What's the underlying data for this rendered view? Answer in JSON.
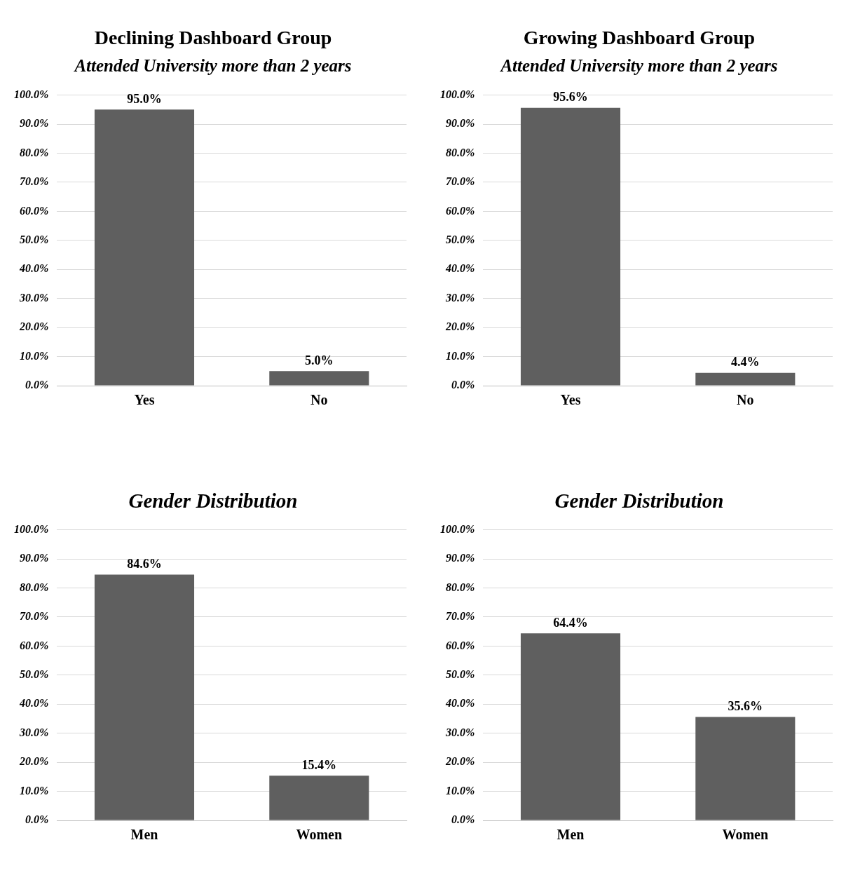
{
  "chart_data": [
    {
      "type": "bar",
      "title": "Declining Dashboard Group",
      "subtitle": "Attended University more than 2 years",
      "categories": [
        "Yes",
        "No"
      ],
      "values": [
        95.0,
        5.0
      ],
      "value_labels": [
        "95.0%",
        "5.0%"
      ],
      "color": "#5f5f5f",
      "ylim": [
        0,
        100
      ],
      "yticks": [
        {
          "value": 0,
          "label": "0.0%"
        },
        {
          "value": 10,
          "label": "10.0%"
        },
        {
          "value": 20,
          "label": "20.0%"
        },
        {
          "value": 30,
          "label": "30.0%"
        },
        {
          "value": 40,
          "label": "40.0%"
        },
        {
          "value": 50,
          "label": "50.0%"
        },
        {
          "value": 60,
          "label": "60.0%"
        },
        {
          "value": 70,
          "label": "70.0%"
        },
        {
          "value": 80,
          "label": "80.0%"
        },
        {
          "value": 90,
          "label": "90.0%"
        },
        {
          "value": 100,
          "label": "100.0%"
        }
      ],
      "grid": "y"
    },
    {
      "type": "bar",
      "title": "Growing Dashboard Group",
      "subtitle": "Attended University more than 2 years",
      "categories": [
        "Yes",
        "No"
      ],
      "values": [
        95.6,
        4.4
      ],
      "value_labels": [
        "95.6%",
        "4.4%"
      ],
      "color": "#5f5f5f",
      "ylim": [
        0,
        100
      ],
      "yticks": [
        {
          "value": 0,
          "label": "0.0%"
        },
        {
          "value": 10,
          "label": "10.0%"
        },
        {
          "value": 20,
          "label": "20.0%"
        },
        {
          "value": 30,
          "label": "30.0%"
        },
        {
          "value": 40,
          "label": "40.0%"
        },
        {
          "value": 50,
          "label": "50.0%"
        },
        {
          "value": 60,
          "label": "60.0%"
        },
        {
          "value": 70,
          "label": "70.0%"
        },
        {
          "value": 80,
          "label": "80.0%"
        },
        {
          "value": 90,
          "label": "90.0%"
        },
        {
          "value": 100,
          "label": "100.0%"
        }
      ],
      "grid": "y"
    },
    {
      "type": "bar",
      "title": "Gender Distribution",
      "categories": [
        "Men",
        "Women"
      ],
      "values": [
        84.6,
        15.4
      ],
      "value_labels": [
        "84.6%",
        "15.4%"
      ],
      "color": "#5f5f5f",
      "ylim": [
        0,
        100
      ],
      "yticks": [
        {
          "value": 0,
          "label": "0.0%"
        },
        {
          "value": 10,
          "label": "10.0%"
        },
        {
          "value": 20,
          "label": "20.0%"
        },
        {
          "value": 30,
          "label": "30.0%"
        },
        {
          "value": 40,
          "label": "40.0%"
        },
        {
          "value": 50,
          "label": "50.0%"
        },
        {
          "value": 60,
          "label": "60.0%"
        },
        {
          "value": 70,
          "label": "70.0%"
        },
        {
          "value": 80,
          "label": "80.0%"
        },
        {
          "value": 90,
          "label": "90.0%"
        },
        {
          "value": 100,
          "label": "100.0%"
        }
      ],
      "grid": "y"
    },
    {
      "type": "bar",
      "title": "Gender Distribution",
      "categories": [
        "Men",
        "Women"
      ],
      "values": [
        64.4,
        35.6
      ],
      "value_labels": [
        "64.4%",
        "35.6%"
      ],
      "color": "#5f5f5f",
      "ylim": [
        0,
        100
      ],
      "yticks": [
        {
          "value": 0,
          "label": "0.0%"
        },
        {
          "value": 10,
          "label": "10.0%"
        },
        {
          "value": 20,
          "label": "20.0%"
        },
        {
          "value": 30,
          "label": "30.0%"
        },
        {
          "value": 40,
          "label": "40.0%"
        },
        {
          "value": 50,
          "label": "50.0%"
        },
        {
          "value": 60,
          "label": "60.0%"
        },
        {
          "value": 70,
          "label": "70.0%"
        },
        {
          "value": 80,
          "label": "80.0%"
        },
        {
          "value": 90,
          "label": "90.0%"
        },
        {
          "value": 100,
          "label": "100.0%"
        }
      ],
      "grid": "y"
    }
  ]
}
